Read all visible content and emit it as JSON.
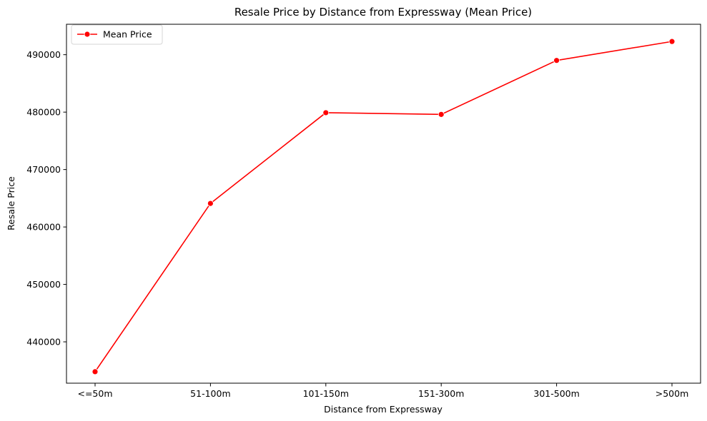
{
  "chart_data": {
    "type": "line",
    "title": "Resale Price by Distance from Expressway (Mean Price)",
    "xlabel": "Distance from Expressway",
    "ylabel": "Resale Price",
    "categories": [
      "<=50m",
      "51-100m",
      "101-150m",
      "151-300m",
      "301-500m",
      ">500m"
    ],
    "series": [
      {
        "name": "Mean Price",
        "values": [
          434800,
          464100,
          479900,
          479600,
          489000,
          492300
        ],
        "color": "#ff0000",
        "marker": "circle"
      }
    ],
    "yticks": [
      440000,
      450000,
      460000,
      470000,
      480000,
      490000
    ],
    "ylim": [
      432800,
      495300
    ],
    "grid": false,
    "legend_position": "top-left"
  }
}
